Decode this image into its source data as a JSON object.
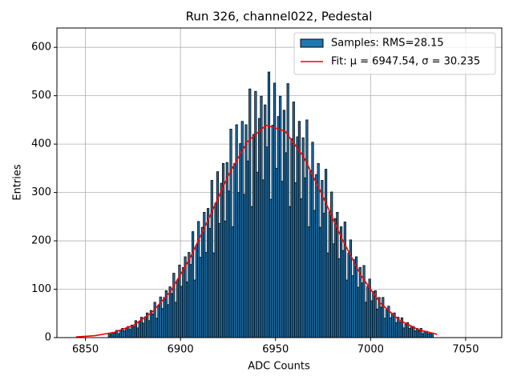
{
  "chart_data": {
    "type": "histogram",
    "title": "Run 326, channel022, Pedestal",
    "xlabel": "ADC Counts",
    "ylabel": "Entries",
    "xlim": [
      6835,
      7069
    ],
    "ylim": [
      0,
      640
    ],
    "xticks": [
      6850,
      6900,
      6950,
      7000,
      7050
    ],
    "yticks": [
      0,
      100,
      200,
      300,
      400,
      500,
      600
    ],
    "grid": true,
    "legend": "upper right",
    "series": [
      {
        "type": "histogram",
        "name": "Samples: RMS=28.15",
        "color": "#1f77b4",
        "edgecolor": "#000000",
        "bins": [
          6862,
          6863,
          6864,
          6865,
          6866,
          6867,
          6868,
          6869,
          6870,
          6871,
          6872,
          6873,
          6874,
          6875,
          6876,
          6877,
          6878,
          6879,
          6880,
          6881,
          6882,
          6883,
          6884,
          6885,
          6886,
          6887,
          6888,
          6889,
          6890,
          6891,
          6892,
          6893,
          6894,
          6895,
          6896,
          6897,
          6898,
          6899,
          6900,
          6901,
          6902,
          6903,
          6904,
          6905,
          6906,
          6907,
          6908,
          6909,
          6910,
          6911,
          6912,
          6913,
          6914,
          6915,
          6916,
          6917,
          6918,
          6919,
          6920,
          6921,
          6922,
          6923,
          6924,
          6925,
          6926,
          6927,
          6928,
          6929,
          6930,
          6931,
          6932,
          6933,
          6934,
          6935,
          6936,
          6937,
          6938,
          6939,
          6940,
          6941,
          6942,
          6943,
          6944,
          6945,
          6946,
          6947,
          6948,
          6949,
          6950,
          6951,
          6952,
          6953,
          6954,
          6955,
          6956,
          6957,
          6958,
          6959,
          6960,
          6961,
          6962,
          6963,
          6964,
          6965,
          6966,
          6967,
          6968,
          6969,
          6970,
          6971,
          6972,
          6973,
          6974,
          6975,
          6976,
          6977,
          6978,
          6979,
          6980,
          6981,
          6982,
          6983,
          6984,
          6985,
          6986,
          6987,
          6988,
          6989,
          6990,
          6991,
          6992,
          6993,
          6994,
          6995,
          6996,
          6997,
          6998,
          6999,
          7000,
          7001,
          7002,
          7003,
          7004,
          7005,
          7006,
          7007,
          7008,
          7009,
          7010,
          7011,
          7012,
          7013,
          7014,
          7015,
          7016,
          7017,
          7018,
          7019,
          7020,
          7021,
          7022,
          7023,
          7024,
          7025,
          7026,
          7027,
          7028,
          7029,
          7030,
          7031,
          7032,
          7033
        ],
        "values": [
          9,
          7,
          11,
          10,
          15,
          8,
          15,
          19,
          14,
          20,
          23,
          17,
          26,
          23,
          35,
          20,
          33,
          42,
          30,
          43,
          51,
          35,
          56,
          49,
          73,
          40,
          66,
          84,
          60,
          83,
          97,
          68,
          105,
          91,
          133,
          73,
          119,
          150,
          106,
          145,
          167,
          115,
          176,
          151,
          219,
          119,
          191,
          240,
          166,
          228,
          259,
          176,
          267,
          226,
          325,
          175,
          278,
          343,
          236,
          319,
          360,
          241,
          362,
          303,
          431,
          229,
          360,
          440,
          300,
          401,
          447,
          296,
          440,
          365,
          514,
          271,
          420,
          509,
          342,
          453,
          499,
          326,
          481,
          394,
          549,
          286,
          439,
          526,
          350,
          457,
          499,
          323,
          470,
          382,
          525,
          271,
          411,
          487,
          320,
          415,
          447,
          287,
          413,
          330,
          450,
          229,
          345,
          404,
          263,
          337,
          360,
          228,
          325,
          257,
          348,
          175,
          260,
          301,
          194,
          246,
          259,
          163,
          229,
          180,
          239,
          119,
          175,
          202,
          128,
          161,
          167,
          104,
          145,
          113,
          149,
          73,
          106,
          121,
          76,
          95,
          97,
          59,
          83,
          63,
          83,
          40,
          58,
          65,
          41,
          49,
          51,
          31,
          42,
          32,
          41,
          20,
          28,
          31,
          19,
          23,
          23,
          14,
          19,
          14,
          19,
          8,
          12,
          13,
          8,
          9,
          9
        ]
      },
      {
        "type": "line",
        "name": "Fit: μ = 6947.54, σ = 30.235",
        "color": "#ff0000",
        "x": [
          6845,
          6855,
          6865,
          6875,
          6885,
          6895,
          6905,
          6915,
          6925,
          6935,
          6945,
          6955,
          6965,
          6975,
          6985,
          6995,
          7005,
          7015,
          7025,
          7035
        ],
        "values": [
          1.4,
          4.1,
          10.7,
          24.8,
          52,
          97,
          164,
          247,
          334,
          404,
          439,
          427,
          372,
          291,
          204,
          128,
          72,
          36.5,
          16.5,
          6.7
        ]
      }
    ]
  }
}
